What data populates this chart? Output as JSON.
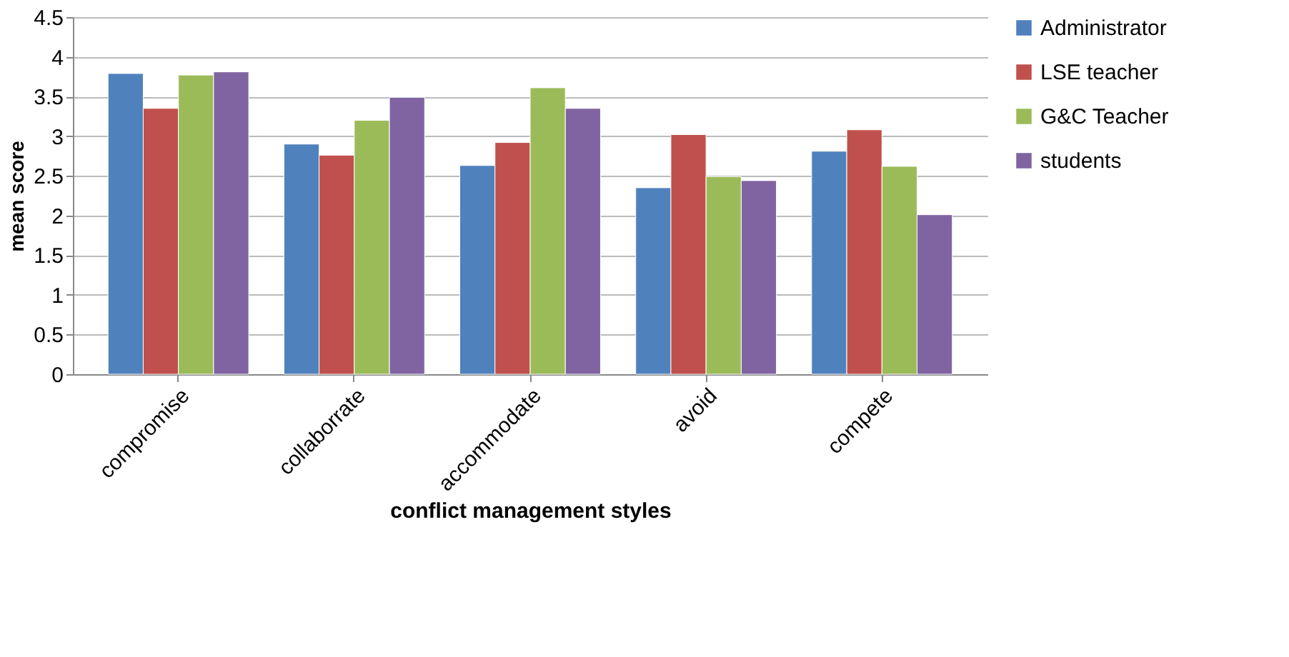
{
  "chart_data": {
    "type": "bar",
    "xlabel": "conflict management styles",
    "ylabel": "mean score",
    "categories": [
      "compromise",
      "collaborrate",
      "accommodate",
      "avoid",
      "compete"
    ],
    "series": [
      {
        "name": "Administrator",
        "color": "#4f81bd",
        "values": [
          3.79,
          2.9,
          2.63,
          2.35,
          2.81
        ]
      },
      {
        "name": "LSE teacher",
        "color": "#c0504d",
        "values": [
          3.35,
          2.76,
          2.92,
          3.02,
          3.08
        ]
      },
      {
        "name": "G&C Teacher",
        "color": "#9bbb59",
        "values": [
          3.77,
          3.2,
          3.61,
          2.49,
          2.62
        ]
      },
      {
        "name": "students",
        "color": "#8064a2",
        "values": [
          3.81,
          3.49,
          3.35,
          2.44,
          2.01
        ]
      }
    ],
    "ylim": [
      0,
      4.5
    ],
    "yticks": [
      0,
      0.5,
      1,
      1.5,
      2,
      2.5,
      3,
      3.5,
      4,
      4.5
    ],
    "grid": "y",
    "legend": "right"
  }
}
